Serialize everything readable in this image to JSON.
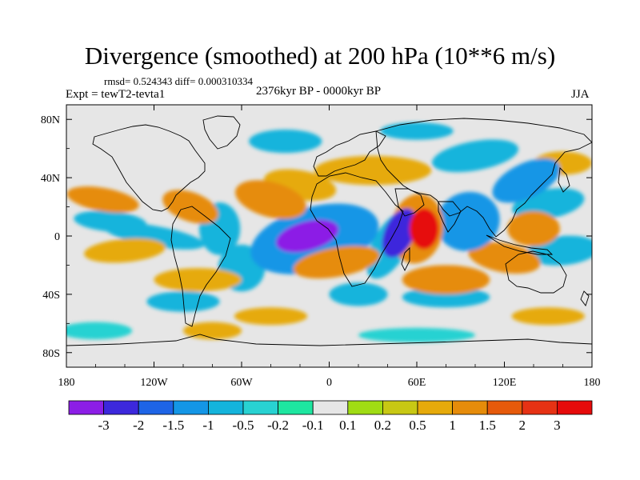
{
  "chart_data": {
    "type": "heatmap",
    "title": "Divergence (smoothed) at 200 hPa (10**6 m/s)",
    "stats_text": "rmsd= 0.524343 diff= 0.000310334",
    "experiment": "Expt = tewT2-tevta1",
    "period": "2376kyr BP - 0000kyr BP",
    "season": "JJA",
    "x_ticks": [
      "180",
      "120W",
      "60W",
      "0",
      "60E",
      "120E",
      "180"
    ],
    "x_tick_lons": [
      -180,
      -120,
      -60,
      0,
      60,
      120,
      180
    ],
    "y_ticks": [
      "80N",
      "40N",
      "0",
      "40S",
      "80S"
    ],
    "y_tick_lats": [
      80,
      40,
      0,
      -40,
      -80
    ],
    "xlim": [
      -180,
      180
    ],
    "ylim": [
      -90,
      90
    ],
    "colorbar": {
      "labels": [
        "-3",
        "-2",
        "-1.5",
        "-1",
        "-0.5",
        "-0.2",
        "-0.1",
        "0.1",
        "0.2",
        "0.5",
        "1",
        "1.5",
        "2",
        "3"
      ],
      "colors": [
        "#8c1ee6",
        "#3c28dc",
        "#1e64e6",
        "#1496e6",
        "#14b4dc",
        "#28d2d2",
        "#1ee6a0",
        "#e6e6e6",
        "#a0dc14",
        "#c8c814",
        "#e6aa0a",
        "#e68c0a",
        "#e65a0a",
        "#e63214",
        "#e60a0a"
      ]
    },
    "features": [
      {
        "lon": -15,
        "lat": 0,
        "v": -3.5,
        "rx": 22,
        "ry": 10,
        "rot": -15
      },
      {
        "lon": -10,
        "lat": -2,
        "v": -1.2,
        "rx": 45,
        "ry": 22,
        "rot": -15
      },
      {
        "lon": 65,
        "lat": 5,
        "v": 3.4,
        "rx": 10,
        "ry": 14,
        "rot": 0
      },
      {
        "lon": 60,
        "lat": 5,
        "v": 1.3,
        "rx": 18,
        "ry": 24,
        "rot": 10
      },
      {
        "lon": 48,
        "lat": 2,
        "v": -2.2,
        "rx": 10,
        "ry": 18,
        "rot": 25
      },
      {
        "lon": 42,
        "lat": -6,
        "v": -1.0,
        "rx": 12,
        "ry": 26,
        "rot": 30
      },
      {
        "lon": 5,
        "lat": -18,
        "v": 1.4,
        "rx": 30,
        "ry": 10,
        "rot": -10
      },
      {
        "lon": 70,
        "lat": 10,
        "v": -0.6,
        "rx": 14,
        "ry": 10,
        "rot": 0
      },
      {
        "lon": 95,
        "lat": 10,
        "v": -1.2,
        "rx": 22,
        "ry": 20,
        "rot": -20
      },
      {
        "lon": 135,
        "lat": 38,
        "v": -1.1,
        "rx": 25,
        "ry": 12,
        "rot": -25
      },
      {
        "lon": 150,
        "lat": 22,
        "v": -0.8,
        "rx": 25,
        "ry": 10,
        "rot": -10
      },
      {
        "lon": 160,
        "lat": -10,
        "v": -0.6,
        "rx": 25,
        "ry": 10,
        "rot": -5
      },
      {
        "lon": -155,
        "lat": 25,
        "v": 1.0,
        "rx": 25,
        "ry": 8,
        "rot": 10
      },
      {
        "lon": -150,
        "lat": 10,
        "v": -0.7,
        "rx": 25,
        "ry": 7,
        "rot": 5
      },
      {
        "lon": -140,
        "lat": -10,
        "v": 0.9,
        "rx": 28,
        "ry": 8,
        "rot": -5
      },
      {
        "lon": -120,
        "lat": 0,
        "v": -0.8,
        "rx": 35,
        "ry": 7,
        "rot": 10
      },
      {
        "lon": -95,
        "lat": 20,
        "v": 1.1,
        "rx": 20,
        "ry": 10,
        "rot": 20
      },
      {
        "lon": -75,
        "lat": 5,
        "v": -1.0,
        "rx": 14,
        "ry": 18,
        "rot": 0
      },
      {
        "lon": -60,
        "lat": -22,
        "v": -0.7,
        "rx": 16,
        "ry": 16,
        "rot": 0
      },
      {
        "lon": -40,
        "lat": 25,
        "v": 1.2,
        "rx": 25,
        "ry": 12,
        "rot": 15
      },
      {
        "lon": -20,
        "lat": 35,
        "v": 0.8,
        "rx": 25,
        "ry": 10,
        "rot": 10
      },
      {
        "lon": 30,
        "lat": 45,
        "v": 0.7,
        "rx": 40,
        "ry": 10,
        "rot": 0
      },
      {
        "lon": 100,
        "lat": 55,
        "v": -0.6,
        "rx": 30,
        "ry": 10,
        "rot": -10
      },
      {
        "lon": -30,
        "lat": 65,
        "v": -0.6,
        "rx": 25,
        "ry": 8,
        "rot": 0
      },
      {
        "lon": 60,
        "lat": 72,
        "v": -0.6,
        "rx": 25,
        "ry": 6,
        "rot": 0
      },
      {
        "lon": 140,
        "lat": 5,
        "v": 1.2,
        "rx": 18,
        "ry": 12,
        "rot": 0
      },
      {
        "lon": 120,
        "lat": -15,
        "v": 1.0,
        "rx": 25,
        "ry": 10,
        "rot": 10
      },
      {
        "lon": 80,
        "lat": -30,
        "v": 1.1,
        "rx": 30,
        "ry": 10,
        "rot": 0
      },
      {
        "lon": 80,
        "lat": -42,
        "v": -0.7,
        "rx": 30,
        "ry": 7,
        "rot": 0
      },
      {
        "lon": -90,
        "lat": -30,
        "v": 0.9,
        "rx": 30,
        "ry": 8,
        "rot": 0
      },
      {
        "lon": -100,
        "lat": -45,
        "v": -0.6,
        "rx": 25,
        "ry": 7,
        "rot": 0
      },
      {
        "lon": -80,
        "lat": -65,
        "v": 0.6,
        "rx": 20,
        "ry": 6,
        "rot": 0
      },
      {
        "lon": -160,
        "lat": -65,
        "v": -0.5,
        "rx": 25,
        "ry": 6,
        "rot": 0
      },
      {
        "lon": 60,
        "lat": -68,
        "v": -0.5,
        "rx": 40,
        "ry": 5,
        "rot": 0
      },
      {
        "lon": 150,
        "lat": -55,
        "v": 0.6,
        "rx": 25,
        "ry": 6,
        "rot": 0
      },
      {
        "lon": -40,
        "lat": -55,
        "v": 0.5,
        "rx": 25,
        "ry": 6,
        "rot": 0
      },
      {
        "lon": 20,
        "lat": -40,
        "v": -0.7,
        "rx": 20,
        "ry": 8,
        "rot": 0
      },
      {
        "lon": 160,
        "lat": 50,
        "v": 0.7,
        "rx": 20,
        "ry": 8,
        "rot": 0
      }
    ]
  }
}
